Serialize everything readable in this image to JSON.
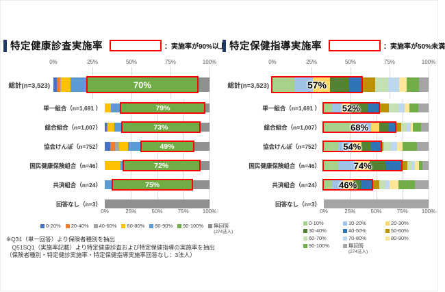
{
  "panels": [
    {
      "title": "特定健康診査実施率",
      "threshold_note": "：実施率が90%以上",
      "legend": [
        {
          "label": "0-20%",
          "color": "#4472C4"
        },
        {
          "label": "20-40%",
          "color": "#ED7D31"
        },
        {
          "label": "40-60%",
          "color": "#A5A5A5"
        },
        {
          "label": "60-80%",
          "color": "#FFC000"
        },
        {
          "label": "80-90%",
          "color": "#5B9BD5"
        },
        {
          "label": "90-100%",
          "color": "#70AD47"
        },
        {
          "label": "無回答",
          "sub": "(274法人)",
          "color": "#8F8F8F"
        }
      ],
      "footnote": [
        "※Q31（単一回答）より保険者種別を抽出",
        "　Q51SQ1（実施率記載）より特定健康診査および特定保健指導の実施率を抽出",
        "（保険者種別・特定健診実施率・特定保健指導実施率回答なし：3法人）"
      ]
    },
    {
      "title": "特定保健指導実施率",
      "threshold_note": "：実施率が50%未満",
      "legend": [
        {
          "label": "0-10%",
          "color": "#A9D18E"
        },
        {
          "label": "10-20%",
          "color": "#9DC3E6"
        },
        {
          "label": "20-30%",
          "color": "#FFD966"
        },
        {
          "label": "30-40%",
          "color": "#548235"
        },
        {
          "label": "40-50%",
          "color": "#2E75B6"
        },
        {
          "label": "50-60%",
          "color": "#BF9000"
        },
        {
          "label": "60-70%",
          "color": "#C5E0B4"
        },
        {
          "label": "70-80%",
          "color": "#BDD7EE"
        },
        {
          "label": "80-90%",
          "color": "#FFE699"
        },
        {
          "label": "90-100%",
          "color": "#70AD47"
        },
        {
          "label": "無回答",
          "sub": "(274法人)",
          "color": "#A5A5A5"
        }
      ],
      "footnote": []
    }
  ],
  "chart_data": [
    {
      "type": "bar",
      "stacked": true,
      "orientation": "horizontal",
      "title": "特定健康診査実施率",
      "highlight_rule": "実施率が90%以上",
      "highlight": {
        "mode": "segment",
        "index": 5
      },
      "xlim": [
        0,
        100
      ],
      "x_ticks": [
        0,
        25,
        50,
        75,
        100
      ],
      "x_tick_labels": [
        "0%",
        "25%",
        "50%",
        "75%",
        "100%"
      ],
      "segments": [
        "0-20%",
        "20-40%",
        "40-60%",
        "60-80%",
        "80-90%",
        "90-100%",
        "無回答"
      ],
      "segment_colors": [
        "#4472C4",
        "#ED7D31",
        "#A5A5A5",
        "#FFC000",
        "#5B9BD5",
        "#70AD47",
        "#8F8F8F"
      ],
      "rows": [
        {
          "category": "総計(n=3,523)",
          "values": [
            2,
            2,
            1,
            6,
            11,
            70,
            8
          ],
          "highlight_label": "70%"
        },
        {
          "category": "単一組合（n=1,691 ）",
          "values": [
            0,
            0,
            0,
            6,
            10,
            79,
            5
          ],
          "highlight_label": "79%"
        },
        {
          "category": "総合組合（n=1,007）",
          "values": [
            2,
            0,
            1,
            6,
            8,
            73,
            10
          ],
          "highlight_label": "73%"
        },
        {
          "category": "協会けんぽ（n=752）",
          "values": [
            5,
            5,
            4,
            8,
            13,
            49,
            16
          ],
          "highlight_label": "49%"
        },
        {
          "category": "国民健康保険組合（n=46）",
          "values": [
            0,
            0,
            0,
            15,
            3,
            72,
            10
          ],
          "highlight_label": "72%"
        },
        {
          "category": "共済組合（n=24）",
          "values": [
            0,
            0,
            0,
            0,
            8,
            75,
            17
          ],
          "highlight_label": "75%"
        },
        {
          "category": "回答なし（n=3）",
          "values": [
            0,
            0,
            0,
            0,
            0,
            0,
            100
          ],
          "highlight_label": ""
        }
      ]
    },
    {
      "type": "bar",
      "stacked": true,
      "orientation": "horizontal",
      "title": "特定保健指導実施率",
      "highlight_rule": "実施率が50%未満",
      "highlight": {
        "mode": "range",
        "from": 0,
        "to": 5
      },
      "xlim": [
        0,
        100
      ],
      "x_ticks": [
        0,
        25,
        50,
        75,
        100
      ],
      "x_tick_labels": [
        "0%",
        "25%",
        "50%",
        "75%",
        "100%"
      ],
      "segments": [
        "0-10%",
        "10-20%",
        "20-30%",
        "30-40%",
        "40-50%",
        "50-60%",
        "60-70%",
        "70-80%",
        "80-90%",
        "90-100%",
        "無回答"
      ],
      "segment_colors": [
        "#A9D18E",
        "#9DC3E6",
        "#FFD966",
        "#548235",
        "#2E75B6",
        "#BF9000",
        "#C5E0B4",
        "#BDD7EE",
        "#FFE699",
        "#70AD47",
        "#A5A5A5"
      ],
      "rows": [
        {
          "category": "総計(n=3,523)",
          "values": [
            14,
            12,
            11,
            12,
            8,
            9,
            8,
            7,
            5,
            8,
            6
          ],
          "highlight_label": "57%"
        },
        {
          "category": "単一組合（n=1,691 ）",
          "values": [
            8,
            9,
            8,
            17,
            10,
            10,
            9,
            6,
            5,
            8,
            10
          ],
          "highlight_label": "52%"
        },
        {
          "category": "総合組合（n=1,007）",
          "values": [
            30,
            15,
            8,
            9,
            6,
            6,
            5,
            4,
            2,
            8,
            7
          ],
          "highlight_label": "68%"
        },
        {
          "category": "協会けんぽ（n=752）",
          "values": [
            14,
            13,
            9,
            9,
            9,
            3,
            7,
            6,
            5,
            14,
            11
          ],
          "highlight_label": "54%"
        },
        {
          "category": "国民健康保険組合（n=46）",
          "values": [
            14,
            16,
            14,
            15,
            15,
            6,
            4,
            3,
            4,
            3,
            6
          ],
          "highlight_label": "74%"
        },
        {
          "category": "共済組合（n=24）",
          "values": [
            8,
            10,
            10,
            7,
            11,
            7,
            6,
            4,
            8,
            16,
            13
          ],
          "highlight_label": "46%"
        },
        {
          "category": "回答なし（n=3）",
          "values": [
            0,
            0,
            0,
            0,
            0,
            0,
            0,
            0,
            0,
            0,
            100
          ],
          "highlight_label": ""
        }
      ]
    }
  ]
}
